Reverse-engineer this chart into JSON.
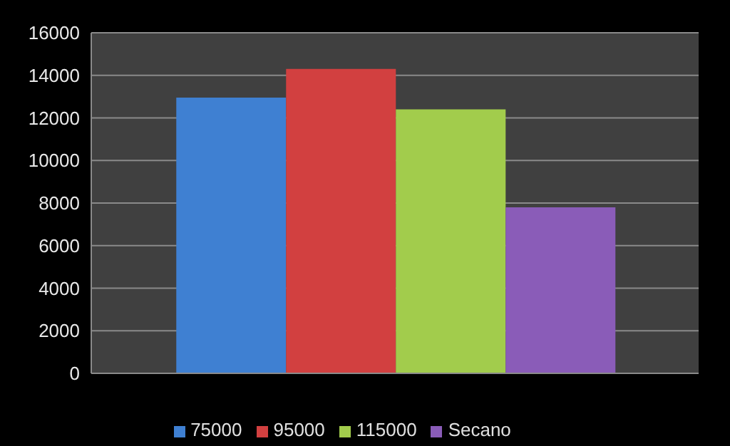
{
  "chart_data": {
    "type": "bar",
    "categories": [
      null
    ],
    "series": [
      {
        "name": "75000",
        "color": "#3f80d2",
        "values": [
          12950
        ]
      },
      {
        "name": "95000",
        "color": "#d24040",
        "values": [
          14300
        ]
      },
      {
        "name": "115000",
        "color": "#a2cc4c",
        "values": [
          12400
        ]
      },
      {
        "name": "Secano",
        "color": "#8a5cb8",
        "values": [
          7800
        ]
      }
    ],
    "ylim": [
      0,
      16000
    ],
    "yticks": [
      0,
      2000,
      4000,
      6000,
      8000,
      10000,
      12000,
      14000,
      16000
    ],
    "grid": "y",
    "legend": "bottom"
  }
}
